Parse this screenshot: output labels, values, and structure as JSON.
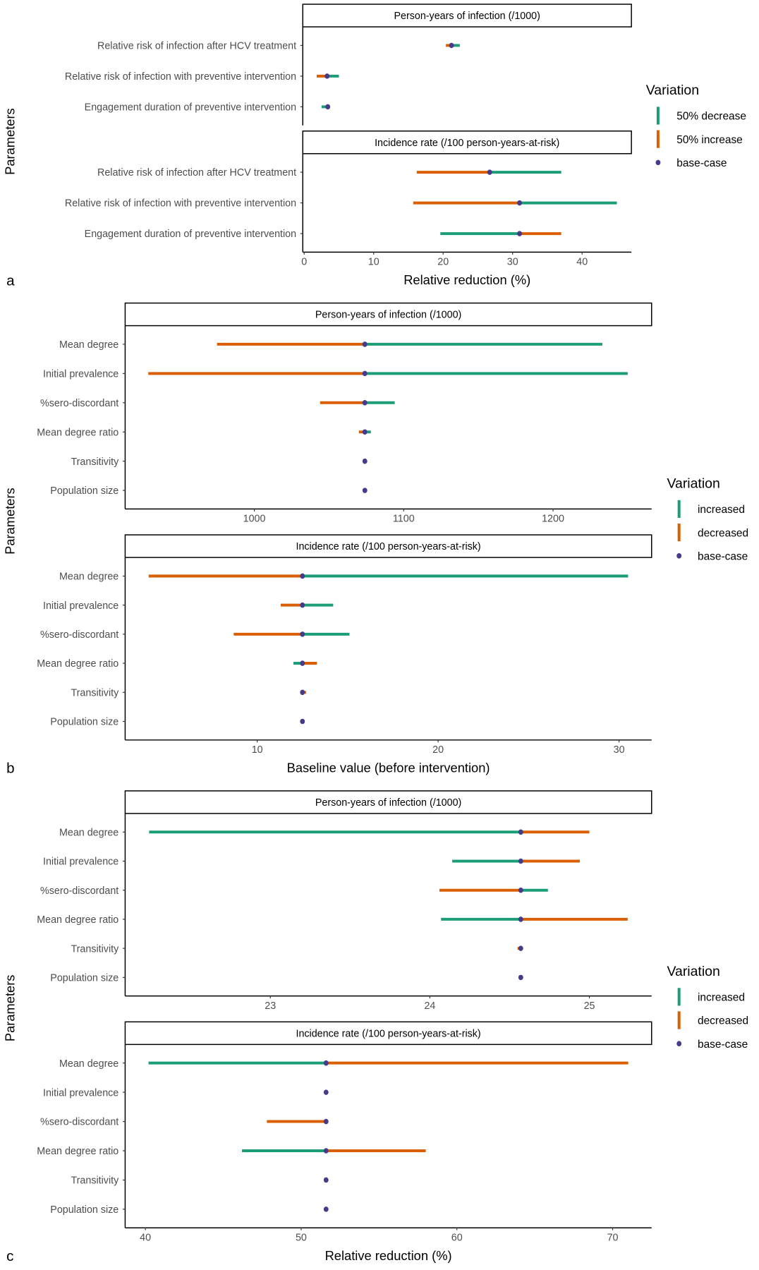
{
  "colors": {
    "increase_like": "#1b9e77",
    "decrease_like": "#d95f02",
    "base_case": "#463a8a"
  },
  "chart_data": [
    {
      "panel_label": "a",
      "type": "range-dot",
      "xlabel": "Relative reduction (%)",
      "ylabel": "Parameters",
      "xlim": [
        -0.2,
        47.1
      ],
      "grid": false,
      "legend": {
        "title": "Variation",
        "position": "right",
        "entries": [
          {
            "label": "50% decrease",
            "key": "green"
          },
          {
            "label": "50% increase",
            "key": "orange"
          },
          {
            "label": "base-case",
            "key": "dot"
          }
        ]
      },
      "facets": [
        {
          "title": "Person-years of infection (/1000)",
          "show_x_axis": false,
          "xticks": [],
          "categories": [
            "Relative risk of infection after HCV treatment",
            "Relative risk of infection with preventive intervention",
            "Engagement duration of preventive intervention"
          ],
          "base": [
            21.2,
            3.3,
            3.4
          ],
          "series": [
            {
              "name": "50% decrease",
              "color": "green",
              "values": [
                22.4,
                5.0,
                2.5
              ]
            },
            {
              "name": "50% increase",
              "color": "orange",
              "values": [
                20.4,
                1.8,
                null
              ]
            }
          ]
        },
        {
          "title": "Incidence rate (/100 person-years-at-risk)",
          "show_x_axis": true,
          "xticks": [
            0,
            10,
            20,
            30,
            40
          ],
          "categories": [
            "Relative risk of infection after HCV treatment",
            "Relative risk of infection with preventive intervention",
            "Engagement duration of preventive intervention"
          ],
          "base": [
            26.7,
            31.0,
            31.0
          ],
          "series": [
            {
              "name": "50% decrease",
              "color": "green",
              "values": [
                37.0,
                45.0,
                19.6
              ]
            },
            {
              "name": "50% increase",
              "color": "orange",
              "values": [
                16.2,
                15.7,
                37.0
              ]
            }
          ]
        }
      ]
    },
    {
      "panel_label": "b",
      "type": "range-dot",
      "xlabel": "Baseline value (before intervention)",
      "ylabel": "Parameters",
      "grid": false,
      "legend": {
        "title": "Variation",
        "position": "right",
        "entries": [
          {
            "label": "increased",
            "key": "green"
          },
          {
            "label": "decreased",
            "key": "orange"
          },
          {
            "label": "base-case",
            "key": "dot"
          }
        ]
      },
      "facets": [
        {
          "title": "Person-years of infection (/1000)",
          "show_x_axis": true,
          "xticks": [
            1000,
            1100,
            1200
          ],
          "xlim": [
            913.5,
            1266
          ],
          "categories": [
            "Mean degree",
            "Initial prevalence",
            "%sero-discordant",
            "Mean degree ratio",
            "Transitivity",
            "Population size"
          ],
          "base": [
            1074,
            1074,
            1074,
            1074,
            1074,
            1074
          ],
          "series": [
            {
              "name": "increased",
              "color": "green",
              "values": [
                1233,
                1250,
                1094,
                1078,
                null,
                null
              ]
            },
            {
              "name": "decreased",
              "color": "orange",
              "values": [
                975,
                929,
                1044,
                1070,
                1075,
                null
              ]
            }
          ]
        },
        {
          "title": "Incidence rate (/100 person-years-at-risk)",
          "show_x_axis": true,
          "xticks": [
            10,
            20,
            30
          ],
          "xlim": [
            2.7,
            31.8
          ],
          "categories": [
            "Mean degree",
            "Initial prevalence",
            "%sero-discordant",
            "Mean degree ratio",
            "Transitivity",
            "Population size"
          ],
          "base": [
            12.5,
            12.5,
            12.5,
            12.5,
            12.5,
            12.5
          ],
          "series": [
            {
              "name": "increased",
              "color": "green",
              "values": [
                30.5,
                14.2,
                15.1,
                12.0,
                null,
                null
              ]
            },
            {
              "name": "decreased",
              "color": "orange",
              "values": [
                4.0,
                11.3,
                8.7,
                13.3,
                12.7,
                null
              ]
            }
          ]
        }
      ]
    },
    {
      "panel_label": "c",
      "type": "range-dot",
      "xlabel": "Relative reduction (%)",
      "ylabel": "Parameters",
      "grid": false,
      "legend": {
        "title": "Variation",
        "position": "right",
        "entries": [
          {
            "label": "increased",
            "key": "green"
          },
          {
            "label": "decreased",
            "key": "orange"
          },
          {
            "label": "base-case",
            "key": "dot"
          }
        ]
      },
      "facets": [
        {
          "title": "Person-years of infection (/1000)",
          "show_x_axis": true,
          "xticks": [
            23,
            24,
            25
          ],
          "xlim": [
            22.09,
            25.39
          ],
          "categories": [
            "Mean degree",
            "Initial prevalence",
            "%sero-discordant",
            "Mean degree ratio",
            "Transitivity",
            "Population size"
          ],
          "base": [
            24.57,
            24.57,
            24.57,
            24.57,
            24.57,
            24.57
          ],
          "series": [
            {
              "name": "increased",
              "color": "green",
              "values": [
                22.24,
                24.14,
                24.74,
                24.07,
                null,
                null
              ]
            },
            {
              "name": "decreased",
              "color": "orange",
              "values": [
                25.0,
                24.94,
                24.06,
                25.24,
                24.55,
                null
              ]
            }
          ]
        },
        {
          "title": "Incidence rate (/100 person-years-at-risk)",
          "show_x_axis": true,
          "xticks": [
            40,
            50,
            60,
            70
          ],
          "xlim": [
            38.7,
            72.5
          ],
          "categories": [
            "Mean degree",
            "Initial prevalence",
            "%sero-discordant",
            "Mean degree ratio",
            "Transitivity",
            "Population size"
          ],
          "base": [
            51.6,
            51.6,
            51.6,
            51.6,
            51.6,
            51.6
          ],
          "series": [
            {
              "name": "increased",
              "color": "green",
              "values": [
                40.2,
                null,
                null,
                46.2,
                null,
                null
              ]
            },
            {
              "name": "decreased",
              "color": "orange",
              "values": [
                71.0,
                null,
                47.8,
                58.0,
                null,
                null
              ]
            }
          ]
        }
      ]
    }
  ]
}
